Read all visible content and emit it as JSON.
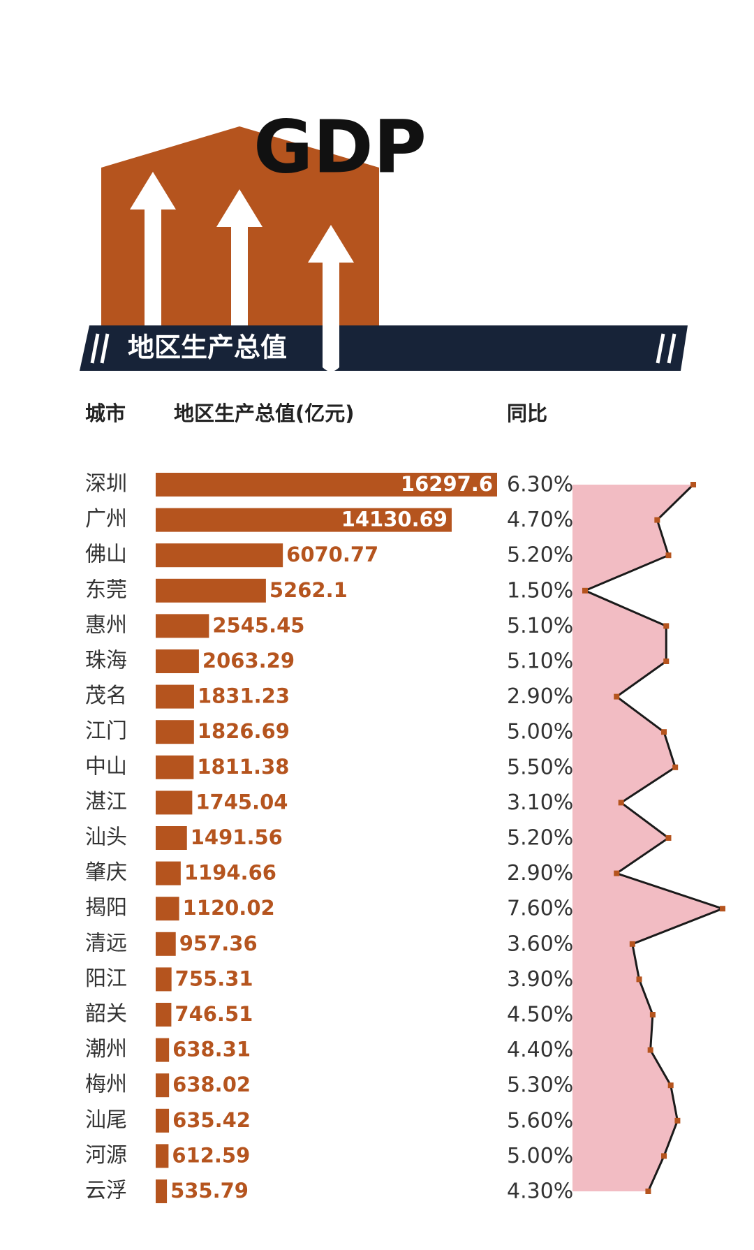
{
  "chart_data": {
    "type": "bar",
    "title": "GDP",
    "subtitle": "地区生产总值",
    "category_label": "城市",
    "categories": [
      "深圳",
      "广州",
      "佛山",
      "东莞",
      "惠州",
      "珠海",
      "茂名",
      "江门",
      "中山",
      "湛江",
      "汕头",
      "肇庆",
      "揭阳",
      "清远",
      "阳江",
      "韶关",
      "潮州",
      "梅州",
      "汕尾",
      "河源",
      "云浮"
    ],
    "series": [
      {
        "name": "地区生产总值(亿元)",
        "type": "bar",
        "color": "#b5541e",
        "values": [
          16297.6,
          14130.69,
          6070.77,
          5262.1,
          2545.45,
          2063.29,
          1831.23,
          1826.69,
          1811.38,
          1745.04,
          1491.56,
          1194.66,
          1120.02,
          957.36,
          755.31,
          746.51,
          638.31,
          638.02,
          635.42,
          612.59,
          535.79
        ]
      },
      {
        "name": "同比",
        "type": "line",
        "color": "#1a1a1a",
        "area_color": "#f2bcc3",
        "marker_color": "#b5541e",
        "values": [
          6.3,
          4.7,
          5.2,
          1.5,
          5.1,
          5.1,
          2.9,
          5.0,
          5.5,
          3.1,
          5.2,
          2.9,
          7.6,
          3.6,
          3.9,
          4.5,
          4.4,
          5.3,
          5.6,
          5.0,
          4.3
        ],
        "value_labels": [
          "6.30%",
          "4.70%",
          "5.20%",
          "1.50%",
          "5.10%",
          "5.10%",
          "2.90%",
          "5.00%",
          "5.50%",
          "3.10%",
          "5.20%",
          "2.90%",
          "7.60%",
          "3.60%",
          "3.90%",
          "4.50%",
          "4.40%",
          "5.30%",
          "5.60%",
          "5.00%",
          "4.30%"
        ]
      }
    ]
  }
}
